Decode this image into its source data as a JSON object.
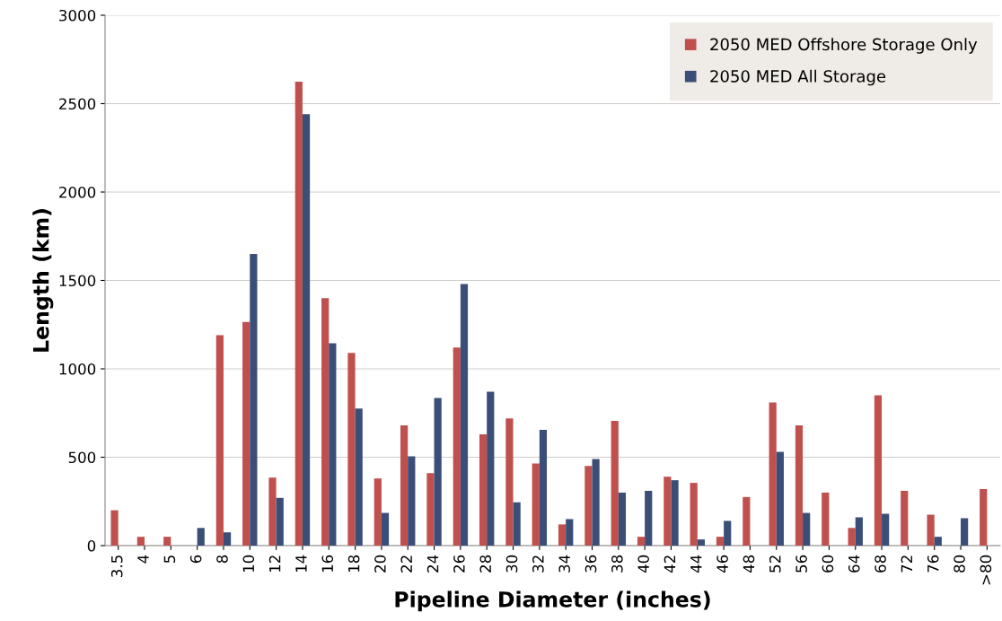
{
  "chart_data": {
    "type": "bar",
    "xlabel": "Pipeline Diameter (inches)",
    "ylabel": "Length (km)",
    "categories": [
      "3.5",
      "4",
      "5",
      "6",
      "8",
      "10",
      "12",
      "14",
      "16",
      "18",
      "20",
      "22",
      "24",
      "26",
      "28",
      "30",
      "32",
      "34",
      "36",
      "38",
      "40",
      "42",
      "44",
      "46",
      "48",
      "52",
      "56",
      "60",
      "64",
      "68",
      "72",
      "76",
      "80",
      ">80"
    ],
    "series": [
      {
        "name": "2050 MED Offshore Storage Only",
        "color": "#c0504d",
        "values": [
          200,
          50,
          50,
          0,
          1190,
          1265,
          385,
          2625,
          1400,
          1090,
          380,
          680,
          410,
          1120,
          630,
          720,
          465,
          120,
          450,
          705,
          50,
          390,
          355,
          50,
          275,
          810,
          680,
          300,
          100,
          850,
          310,
          175,
          0,
          320
        ]
      },
      {
        "name": "2050 MED All Storage",
        "color": "#3b4e78",
        "values": [
          0,
          0,
          0,
          100,
          75,
          1650,
          270,
          2440,
          1145,
          775,
          185,
          505,
          835,
          1480,
          870,
          245,
          655,
          150,
          490,
          300,
          310,
          370,
          35,
          140,
          0,
          530,
          185,
          0,
          160,
          180,
          0,
          50,
          155,
          0
        ]
      }
    ],
    "ylim": [
      0,
      3000
    ],
    "yticks": [
      0,
      500,
      1000,
      1500,
      2000,
      2500,
      3000
    ],
    "grid": "y",
    "legend": "top right"
  }
}
